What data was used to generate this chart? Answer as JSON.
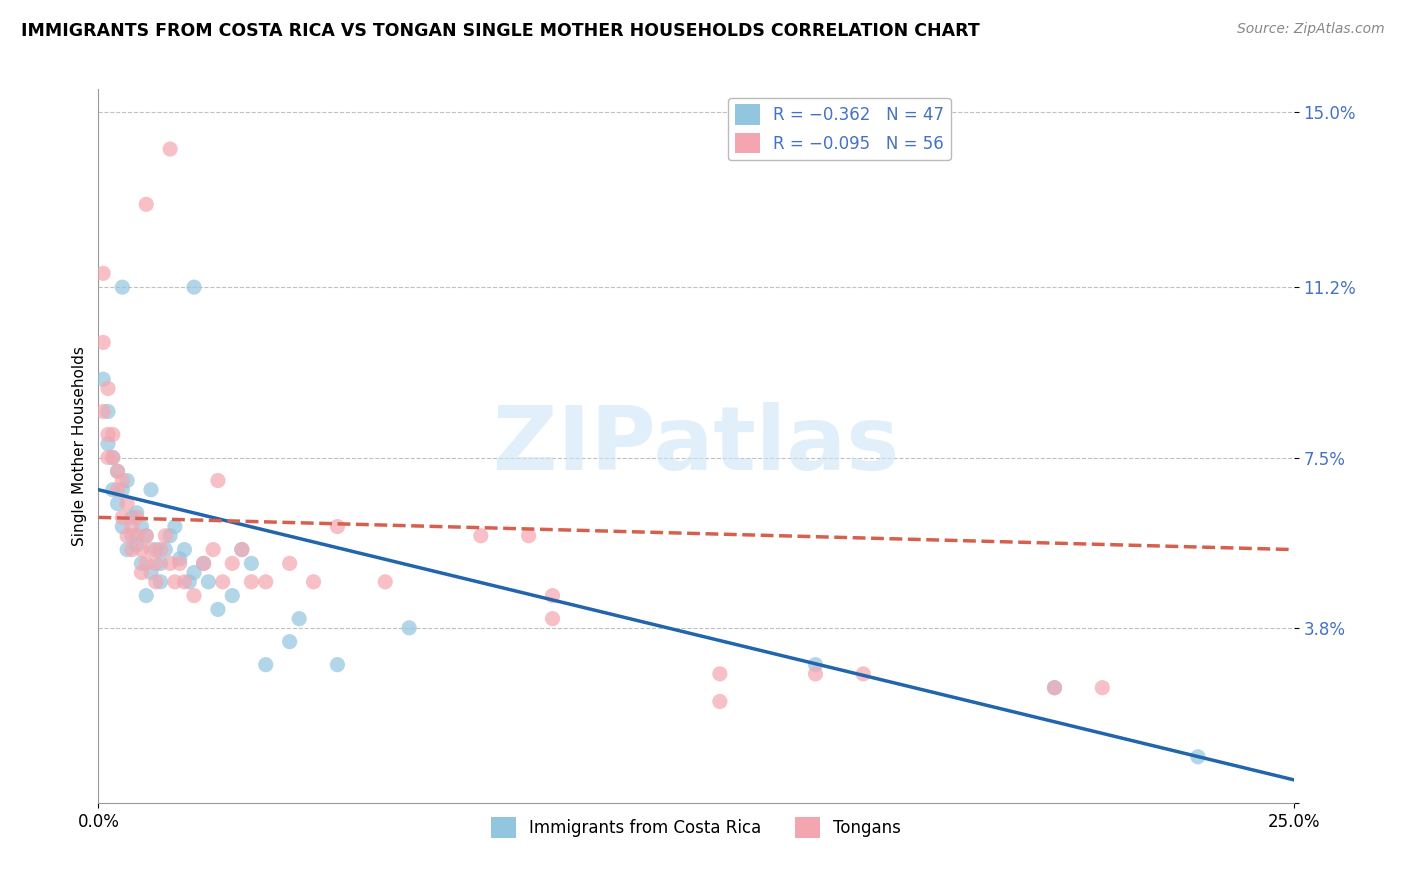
{
  "title": "IMMIGRANTS FROM COSTA RICA VS TONGAN SINGLE MOTHER HOUSEHOLDS CORRELATION CHART",
  "source": "Source: ZipAtlas.com",
  "ylabel": "Single Mother Households",
  "xlim": [
    0.0,
    0.25
  ],
  "ylim": [
    0.0,
    0.155
  ],
  "ytick_values": [
    0.0,
    0.038,
    0.075,
    0.112,
    0.15
  ],
  "ytick_labels": [
    "",
    "3.8%",
    "7.5%",
    "11.2%",
    "15.0%"
  ],
  "xtick_values": [
    0.0,
    0.25
  ],
  "xtick_labels": [
    "0.0%",
    "25.0%"
  ],
  "stat_legend": [
    {
      "label": "R = −0.362   N = 47",
      "color": "#92c5de"
    },
    {
      "label": "R = −0.095   N = 56",
      "color": "#f4a6b0"
    }
  ],
  "blue_color": "#92c5de",
  "pink_color": "#f4a6b0",
  "blue_line_color": "#2166ac",
  "pink_line_color": "#d6604d",
  "watermark": "ZIPatlas",
  "blue_line": {
    "x0": 0.0,
    "y0": 0.068,
    "x1": 0.25,
    "y1": 0.005
  },
  "pink_line": {
    "x0": 0.0,
    "y0": 0.062,
    "x1": 0.25,
    "y1": 0.055
  },
  "blue_scatter": [
    [
      0.001,
      0.092
    ],
    [
      0.002,
      0.085
    ],
    [
      0.002,
      0.078
    ],
    [
      0.003,
      0.075
    ],
    [
      0.003,
      0.068
    ],
    [
      0.004,
      0.072
    ],
    [
      0.004,
      0.065
    ],
    [
      0.005,
      0.06
    ],
    [
      0.005,
      0.068
    ],
    [
      0.006,
      0.055
    ],
    [
      0.006,
      0.07
    ],
    [
      0.007,
      0.062
    ],
    [
      0.007,
      0.058
    ],
    [
      0.008,
      0.063
    ],
    [
      0.008,
      0.056
    ],
    [
      0.009,
      0.06
    ],
    [
      0.009,
      0.052
    ],
    [
      0.01,
      0.058
    ],
    [
      0.01,
      0.045
    ],
    [
      0.011,
      0.068
    ],
    [
      0.011,
      0.05
    ],
    [
      0.012,
      0.055
    ],
    [
      0.013,
      0.052
    ],
    [
      0.013,
      0.048
    ],
    [
      0.014,
      0.055
    ],
    [
      0.015,
      0.058
    ],
    [
      0.016,
      0.06
    ],
    [
      0.017,
      0.053
    ],
    [
      0.018,
      0.055
    ],
    [
      0.019,
      0.048
    ],
    [
      0.02,
      0.05
    ],
    [
      0.022,
      0.052
    ],
    [
      0.023,
      0.048
    ],
    [
      0.025,
      0.042
    ],
    [
      0.028,
      0.045
    ],
    [
      0.03,
      0.055
    ],
    [
      0.032,
      0.052
    ],
    [
      0.035,
      0.03
    ],
    [
      0.04,
      0.035
    ],
    [
      0.042,
      0.04
    ],
    [
      0.05,
      0.03
    ],
    [
      0.065,
      0.038
    ],
    [
      0.15,
      0.03
    ],
    [
      0.2,
      0.025
    ],
    [
      0.23,
      0.01
    ],
    [
      0.02,
      0.112
    ],
    [
      0.005,
      0.112
    ]
  ],
  "pink_scatter": [
    [
      0.001,
      0.115
    ],
    [
      0.001,
      0.1
    ],
    [
      0.001,
      0.085
    ],
    [
      0.002,
      0.09
    ],
    [
      0.002,
      0.08
    ],
    [
      0.002,
      0.075
    ],
    [
      0.003,
      0.08
    ],
    [
      0.003,
      0.075
    ],
    [
      0.004,
      0.072
    ],
    [
      0.004,
      0.068
    ],
    [
      0.005,
      0.07
    ],
    [
      0.005,
      0.062
    ],
    [
      0.006,
      0.065
    ],
    [
      0.006,
      0.058
    ],
    [
      0.007,
      0.06
    ],
    [
      0.007,
      0.055
    ],
    [
      0.008,
      0.062
    ],
    [
      0.008,
      0.058
    ],
    [
      0.009,
      0.055
    ],
    [
      0.009,
      0.05
    ],
    [
      0.01,
      0.058
    ],
    [
      0.01,
      0.052
    ],
    [
      0.011,
      0.055
    ],
    [
      0.012,
      0.052
    ],
    [
      0.012,
      0.048
    ],
    [
      0.013,
      0.055
    ],
    [
      0.014,
      0.058
    ],
    [
      0.015,
      0.052
    ],
    [
      0.016,
      0.048
    ],
    [
      0.017,
      0.052
    ],
    [
      0.018,
      0.048
    ],
    [
      0.02,
      0.045
    ],
    [
      0.022,
      0.052
    ],
    [
      0.024,
      0.055
    ],
    [
      0.026,
      0.048
    ],
    [
      0.028,
      0.052
    ],
    [
      0.03,
      0.055
    ],
    [
      0.032,
      0.048
    ],
    [
      0.035,
      0.048
    ],
    [
      0.04,
      0.052
    ],
    [
      0.045,
      0.048
    ],
    [
      0.05,
      0.06
    ],
    [
      0.06,
      0.048
    ],
    [
      0.08,
      0.058
    ],
    [
      0.09,
      0.058
    ],
    [
      0.15,
      0.028
    ],
    [
      0.16,
      0.028
    ],
    [
      0.2,
      0.025
    ],
    [
      0.21,
      0.025
    ],
    [
      0.015,
      0.142
    ],
    [
      0.01,
      0.13
    ],
    [
      0.095,
      0.045
    ],
    [
      0.095,
      0.04
    ],
    [
      0.13,
      0.028
    ],
    [
      0.13,
      0.022
    ],
    [
      0.025,
      0.07
    ]
  ]
}
